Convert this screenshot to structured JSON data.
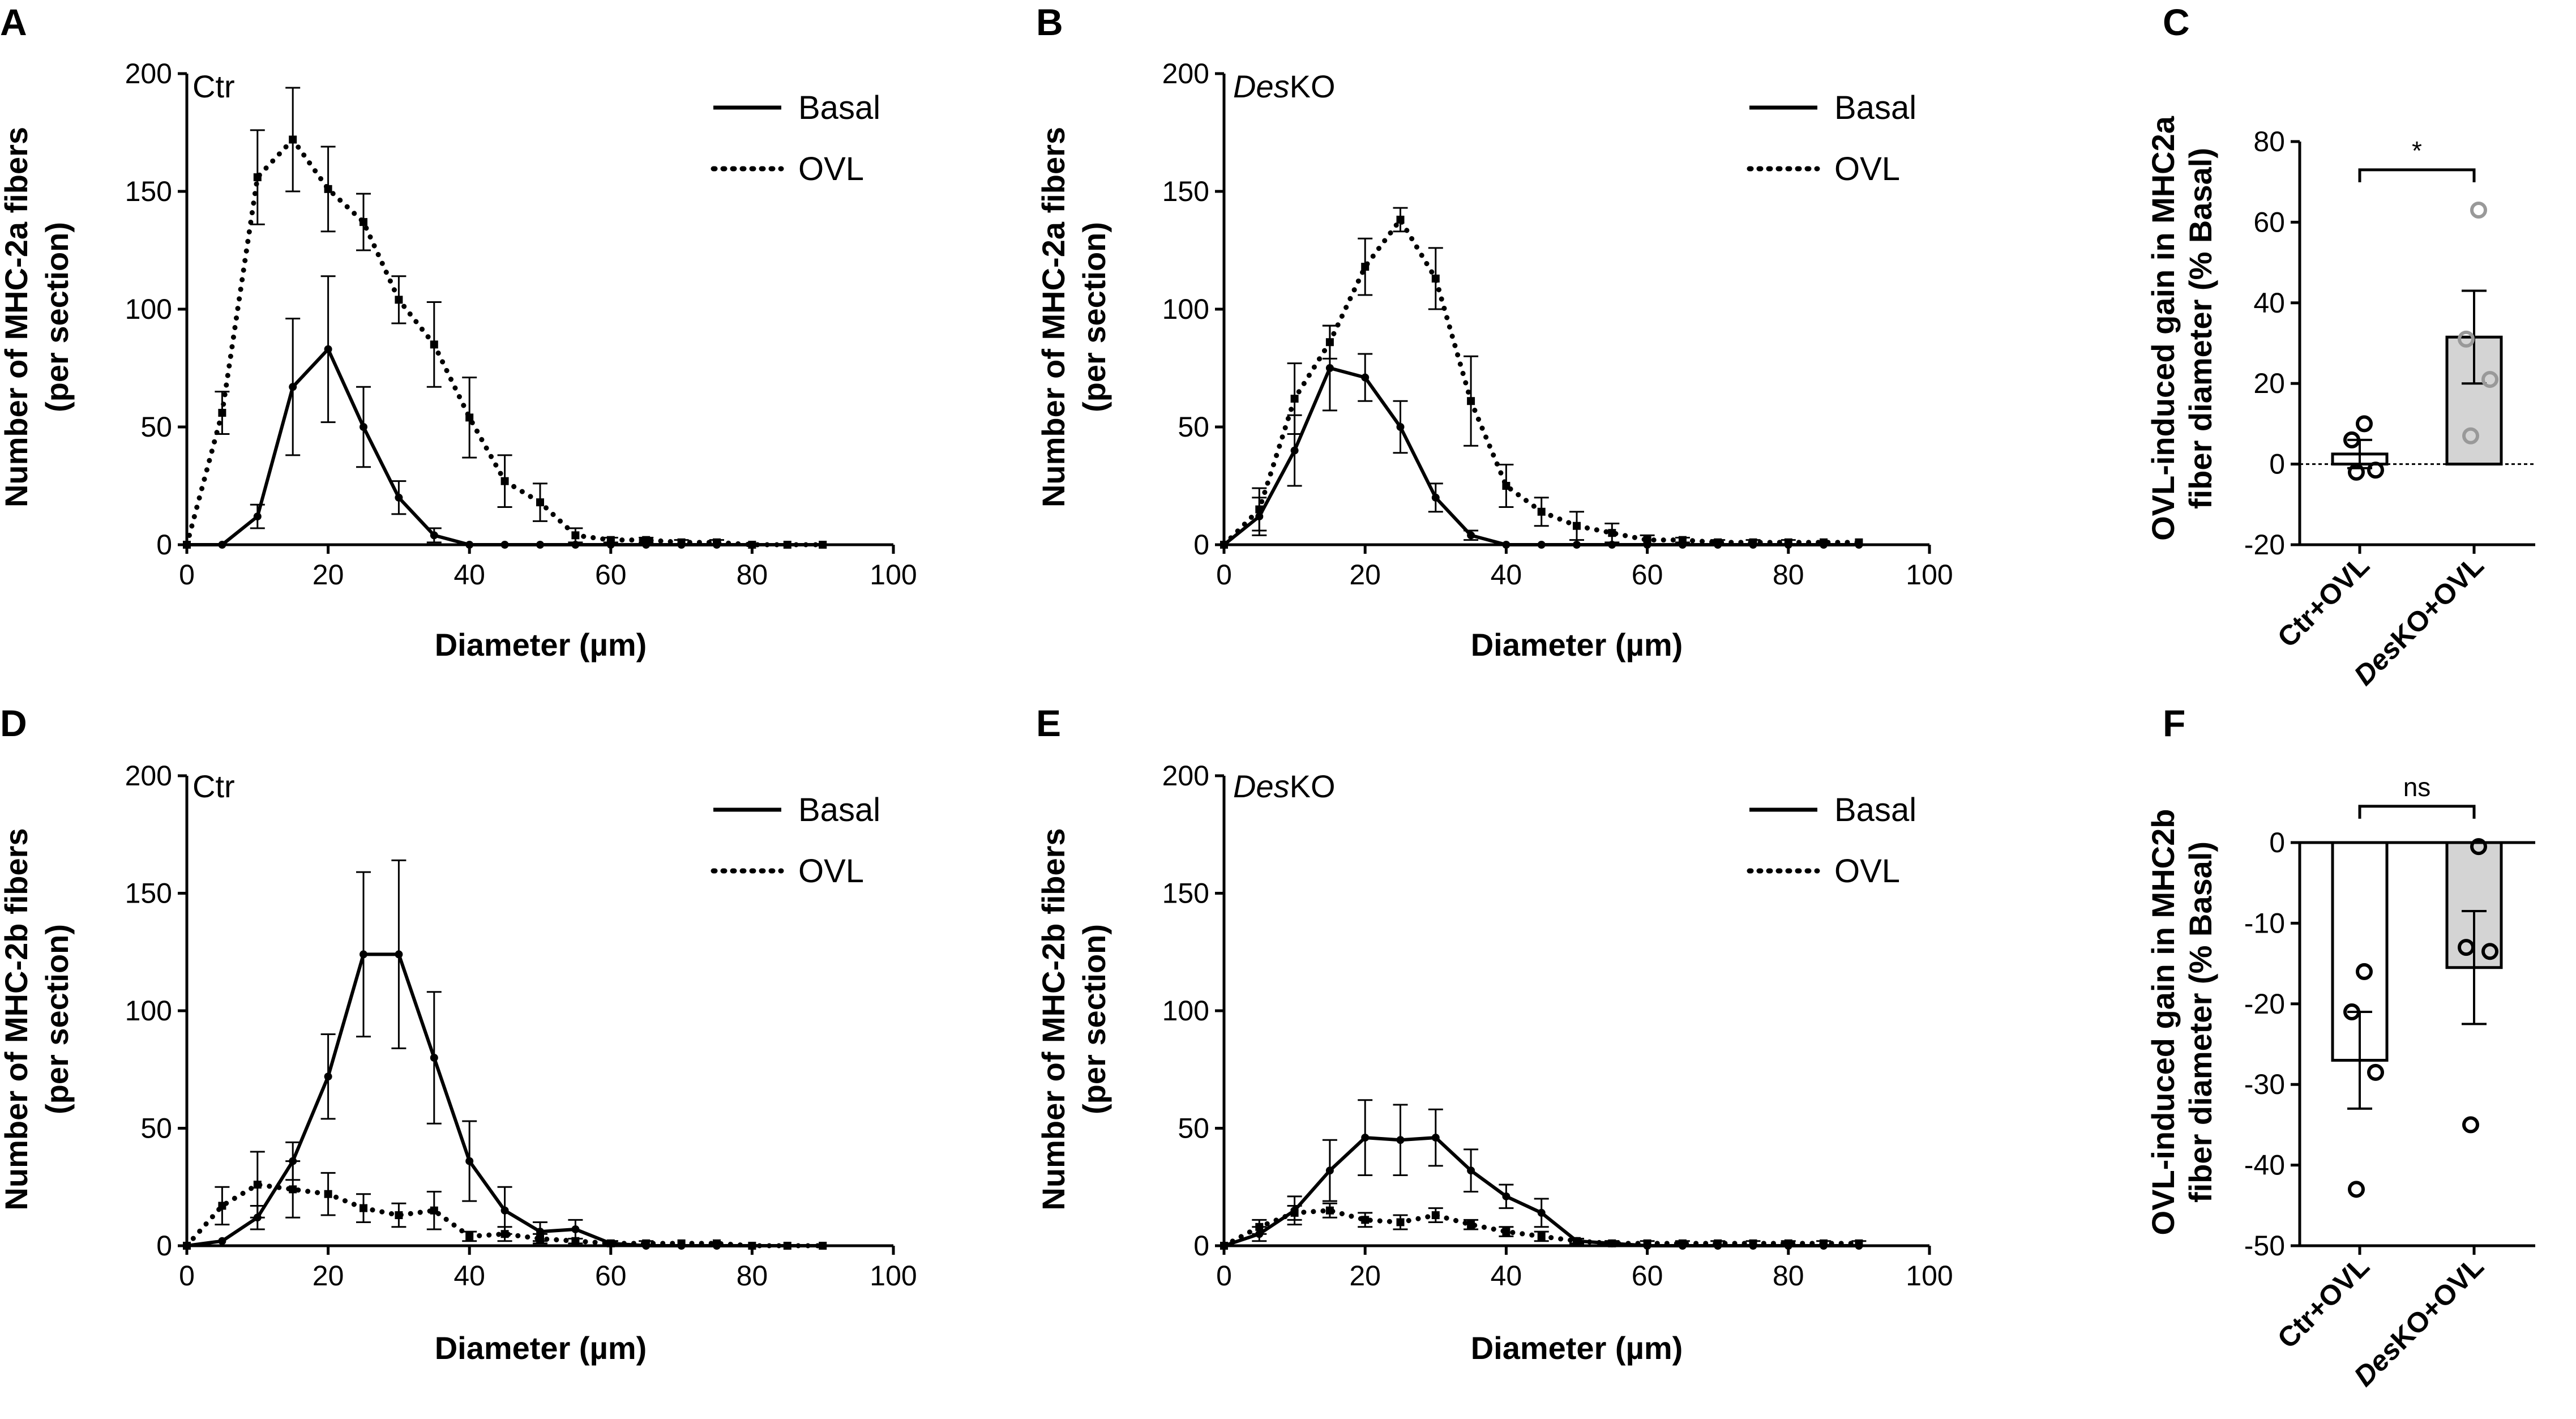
{
  "chart_data": [
    {
      "panel": "A",
      "type": "line",
      "subtitle": "Ctr",
      "subtitle_italic": "",
      "ylabel": [
        "Number of MHC-2a fibers",
        "(per section)"
      ],
      "xlabel": "Diameter (µm)",
      "xlim": [
        0,
        100
      ],
      "xticks": [
        0,
        20,
        40,
        60,
        80,
        100
      ],
      "ylim": [
        0,
        200
      ],
      "yticks": [
        0,
        50,
        100,
        150,
        200
      ],
      "legend": [
        "Basal",
        "OVL"
      ],
      "x": [
        0,
        5,
        10,
        15,
        20,
        25,
        30,
        35,
        40,
        45,
        50,
        55,
        60,
        65,
        70,
        75,
        80,
        85,
        90
      ],
      "series": [
        {
          "name": "Basal",
          "style": "solid",
          "values": [
            0,
            0,
            12,
            67,
            83,
            50,
            20,
            4,
            0,
            0,
            0,
            0,
            0,
            0,
            0,
            0,
            0,
            0,
            0
          ],
          "errors": [
            0,
            0,
            5,
            29,
            31,
            17,
            7,
            3,
            0,
            0,
            0,
            0,
            0,
            0,
            0,
            0,
            0,
            0,
            0
          ]
        },
        {
          "name": "OVL",
          "style": "dotted",
          "values": [
            0,
            56,
            156,
            172,
            151,
            137,
            104,
            85,
            54,
            27,
            18,
            4,
            2,
            2,
            1,
            1,
            0,
            0,
            0
          ],
          "errors": [
            0,
            9,
            20,
            22,
            18,
            12,
            10,
            18,
            17,
            11,
            8,
            3,
            1,
            1,
            1,
            1,
            0,
            0,
            0
          ]
        }
      ]
    },
    {
      "panel": "B",
      "type": "line",
      "subtitle": "KO",
      "subtitle_italic": "Des",
      "ylabel": [
        "Number of MHC-2a fibers",
        "(per section)"
      ],
      "xlabel": "Diameter (µm)",
      "xlim": [
        0,
        100
      ],
      "xticks": [
        0,
        20,
        40,
        60,
        80,
        100
      ],
      "ylim": [
        0,
        200
      ],
      "yticks": [
        0,
        50,
        100,
        150,
        200
      ],
      "legend": [
        "Basal",
        "OVL"
      ],
      "x": [
        0,
        5,
        10,
        15,
        20,
        25,
        30,
        35,
        40,
        45,
        50,
        55,
        60,
        65,
        70,
        75,
        80,
        85,
        90
      ],
      "series": [
        {
          "name": "Basal",
          "style": "solid",
          "values": [
            0,
            12,
            40,
            75,
            71,
            50,
            20,
            4,
            0,
            0,
            0,
            0,
            0,
            0,
            0,
            0,
            0,
            0,
            0
          ],
          "errors": [
            0,
            8,
            15,
            18,
            10,
            11,
            6,
            2,
            0,
            0,
            0,
            0,
            0,
            0,
            0,
            0,
            0,
            0,
            0
          ]
        },
        {
          "name": "OVL",
          "style": "dotted",
          "values": [
            0,
            15,
            62,
            86,
            118,
            138,
            113,
            61,
            25,
            14,
            8,
            5,
            2,
            2,
            1,
            1,
            1,
            1,
            1
          ],
          "errors": [
            0,
            9,
            15,
            7,
            12,
            5,
            13,
            19,
            9,
            6,
            6,
            4,
            2,
            1,
            1,
            1,
            1,
            0,
            0
          ]
        }
      ]
    },
    {
      "panel": "C",
      "type": "bar",
      "ylabel": [
        "OVL-induced gain in MHC2a",
        "fiber diameter (% Basal)"
      ],
      "ylim": [
        -20,
        80
      ],
      "yticks": [
        -20,
        0,
        20,
        40,
        60,
        80
      ],
      "categories": [
        "Ctr+OVL",
        "DesKO+OVL"
      ],
      "values": [
        2.5,
        31.5
      ],
      "errors": [
        3.5,
        11.5
      ],
      "points": [
        [
          10,
          6,
          -1.5,
          -2
        ],
        [
          63,
          31,
          21,
          7
        ]
      ],
      "bar_colors": [
        "#ffffff",
        "#d4d4d4"
      ],
      "point_colors": [
        "#000000",
        "#999999"
      ],
      "significance": "*"
    },
    {
      "panel": "D",
      "type": "line",
      "subtitle": "Ctr",
      "subtitle_italic": "",
      "ylabel": [
        "Number of MHC-2b fibers",
        "(per section)"
      ],
      "xlabel": "Diameter (µm)",
      "xlim": [
        0,
        100
      ],
      "xticks": [
        0,
        20,
        40,
        60,
        80,
        100
      ],
      "ylim": [
        0,
        200
      ],
      "yticks": [
        0,
        50,
        100,
        150,
        200
      ],
      "legend": [
        "Basal",
        "OVL"
      ],
      "x": [
        0,
        5,
        10,
        15,
        20,
        25,
        30,
        35,
        40,
        45,
        50,
        55,
        60,
        65,
        70,
        75,
        80,
        85,
        90
      ],
      "series": [
        {
          "name": "Basal",
          "style": "solid",
          "values": [
            0,
            2,
            12,
            36,
            72,
            124,
            124,
            80,
            36,
            15,
            6,
            7,
            1,
            0,
            0,
            0,
            0,
            0,
            0
          ],
          "errors": [
            0,
            0,
            5,
            8,
            18,
            35,
            40,
            28,
            17,
            10,
            4,
            4,
            1,
            0,
            0,
            0,
            0,
            0,
            0
          ]
        },
        {
          "name": "OVL",
          "style": "dotted",
          "values": [
            0,
            17,
            26,
            24,
            22,
            16,
            13,
            15,
            4,
            5,
            3,
            2,
            1,
            1,
            1,
            1,
            0,
            0,
            0
          ],
          "errors": [
            0,
            8,
            14,
            12,
            9,
            6,
            5,
            8,
            2,
            3,
            2,
            1,
            1,
            1,
            0,
            0,
            0,
            0,
            0
          ]
        }
      ]
    },
    {
      "panel": "E",
      "type": "line",
      "subtitle": "KO",
      "subtitle_italic": "Des",
      "ylabel": [
        "Number of MHC-2b fibers",
        "(per section)"
      ],
      "xlabel": "Diameter (µm)",
      "xlim": [
        0,
        100
      ],
      "xticks": [
        0,
        20,
        40,
        60,
        80,
        100
      ],
      "ylim": [
        0,
        200
      ],
      "yticks": [
        0,
        50,
        100,
        150,
        200
      ],
      "legend": [
        "Basal",
        "OVL"
      ],
      "x": [
        0,
        5,
        10,
        15,
        20,
        25,
        30,
        35,
        40,
        45,
        50,
        55,
        60,
        65,
        70,
        75,
        80,
        85,
        90
      ],
      "series": [
        {
          "name": "Basal",
          "style": "solid",
          "values": [
            0,
            5,
            15,
            32,
            46,
            45,
            46,
            32,
            21,
            14,
            2,
            1,
            0,
            0,
            0,
            0,
            0,
            0,
            0
          ],
          "errors": [
            0,
            3,
            6,
            13,
            16,
            15,
            12,
            9,
            5,
            6,
            1,
            1,
            0,
            0,
            0,
            0,
            0,
            0,
            0
          ]
        },
        {
          "name": "OVL",
          "style": "dotted",
          "values": [
            0,
            8,
            14,
            15,
            11,
            10,
            13,
            9,
            6,
            4,
            2,
            1,
            1,
            1,
            1,
            1,
            1,
            1,
            1
          ],
          "errors": [
            0,
            3,
            3,
            3,
            3,
            3,
            3,
            2,
            2,
            2,
            1,
            1,
            1,
            1,
            1,
            1,
            1,
            1,
            1
          ]
        }
      ]
    },
    {
      "panel": "F",
      "type": "bar",
      "ylabel": [
        "OVL-induced gain in MHC2b",
        "fiber diameter (% Basal)"
      ],
      "ylim": [
        -50,
        0
      ],
      "yticks": [
        -50,
        -40,
        -30,
        -20,
        -10,
        0
      ],
      "categories": [
        "Ctr+OVL",
        "DesKO+OVL"
      ],
      "values": [
        -27,
        -15.5
      ],
      "errors": [
        6,
        7
      ],
      "points": [
        [
          -16,
          -21,
          -28.5,
          -43
        ],
        [
          -0.5,
          -13,
          -13.5,
          -35
        ]
      ],
      "bar_colors": [
        "#ffffff",
        "#d4d4d4"
      ],
      "point_colors": [
        "#000000",
        "#000000"
      ],
      "significance": "ns"
    }
  ]
}
